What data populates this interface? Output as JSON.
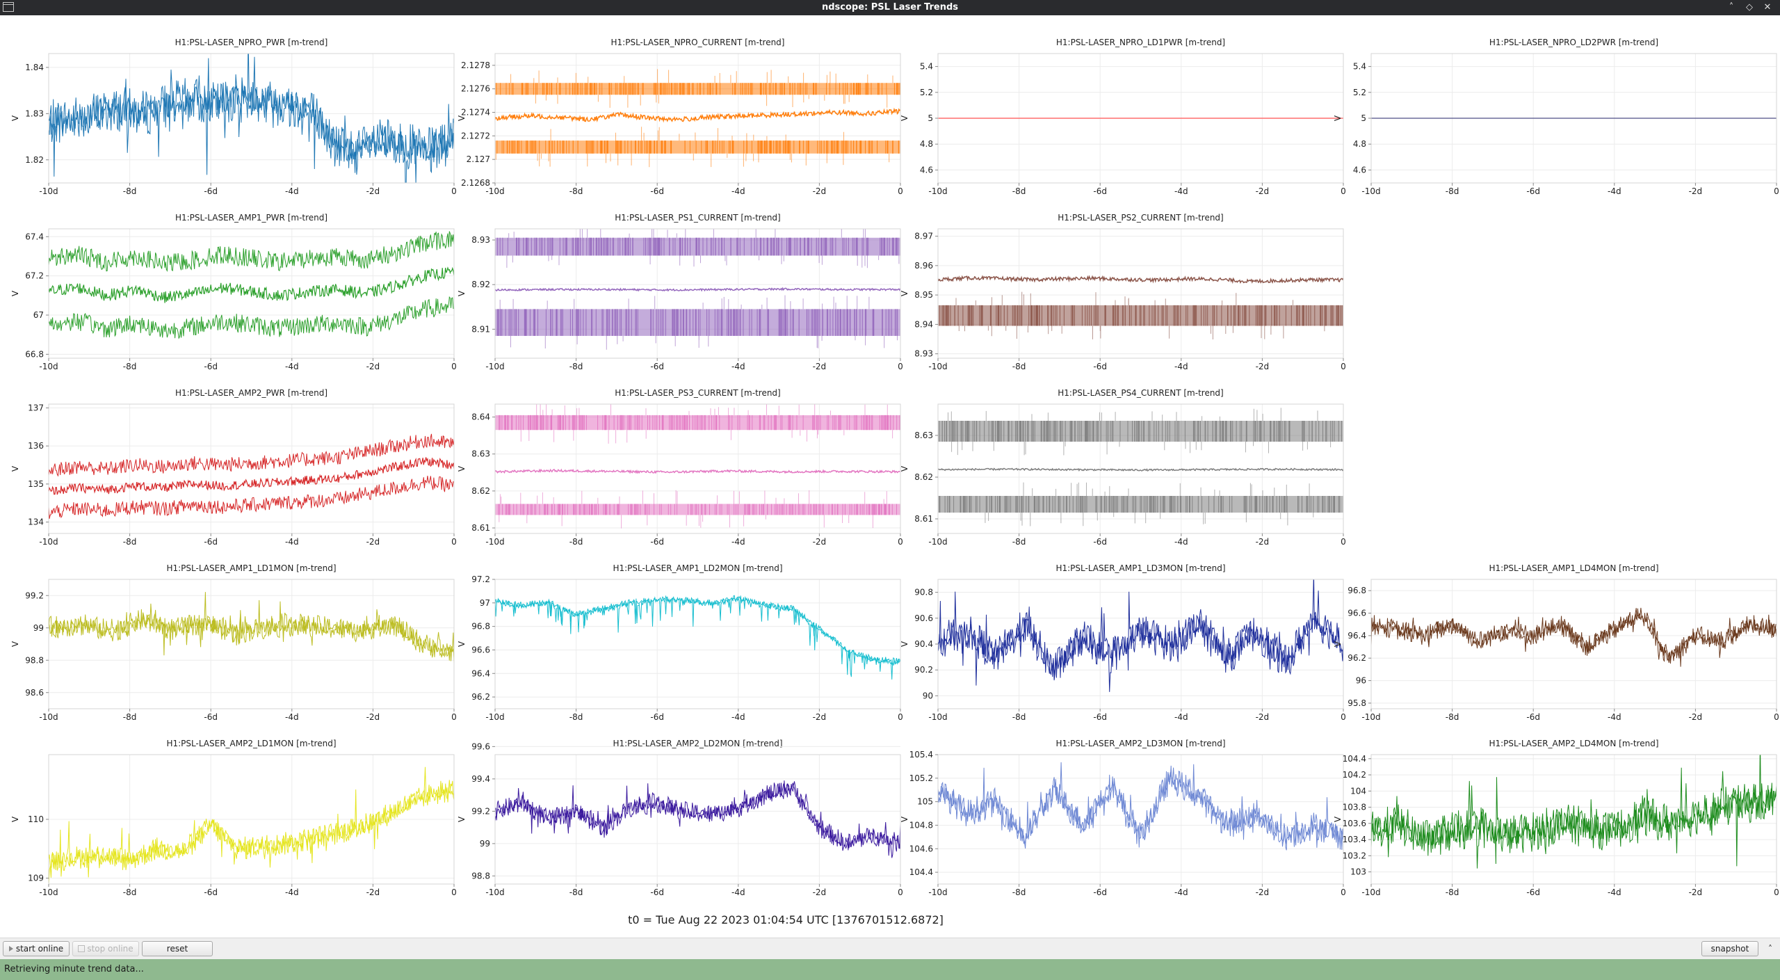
{
  "window": {
    "title": "ndscope: PSL Laser Trends"
  },
  "x_tick_labels": [
    "-10d",
    "-8d",
    "-6d",
    "-4d",
    "-2d",
    "0"
  ],
  "colors": {
    "axis": "#d5d5d5",
    "grid": "#ececec",
    "status_bar": "#8fb98f"
  },
  "plots": [
    {
      "id": "npro_pwr",
      "row": 0,
      "col": 0,
      "title": "H1:PSL-LASER_NPRO_PWR [m-trend]",
      "ylabel": "V",
      "color": "#1f77b4",
      "style": "noise",
      "ylim": [
        1.815,
        1.843
      ],
      "yticks": [
        1.82,
        1.83,
        1.84
      ],
      "ytick_labels": [
        "1.82",
        "1.83",
        "1.84"
      ],
      "series_profile": [
        1.828,
        1.829,
        1.83,
        1.831,
        1.83,
        1.832,
        1.833,
        1.832,
        1.834,
        1.833,
        1.832,
        1.831,
        1.823,
        1.822,
        1.824,
        1.823,
        1.822,
        1.824
      ],
      "amplitude": 0.005
    },
    {
      "id": "npro_current",
      "row": 0,
      "col": 1,
      "title": "H1:PSL-LASER_NPRO_CURRENT [m-trend]",
      "ylabel": "V",
      "color": "#ff7f0e",
      "style": "banded",
      "ylim": [
        2.1268,
        2.1279
      ],
      "yticks": [
        2.1268,
        2.127,
        2.1272,
        2.1274,
        2.1276,
        2.1278
      ],
      "ytick_labels": [
        "2.1268",
        "2.127",
        "2.1272",
        "2.1274",
        "2.1276",
        "2.1278"
      ],
      "bands": [
        [
          2.12755,
          2.12765
        ],
        [
          2.12705,
          2.12716
        ]
      ],
      "series_profile": [
        2.12735,
        2.12737,
        2.12736,
        2.12734,
        2.12738,
        2.12735,
        2.12734,
        2.12736,
        2.12737,
        2.12738,
        2.12739,
        2.1274,
        2.12739,
        2.12741
      ],
      "amplitude": 2e-05
    },
    {
      "id": "npro_ld1pwr",
      "row": 0,
      "col": 2,
      "title": "H1:PSL-LASER_NPRO_LD1PWR [m-trend]",
      "ylabel": "V",
      "color": "#ff6d6d",
      "style": "flat",
      "ylim": [
        4.5,
        5.5
      ],
      "yticks": [
        4.6,
        4.8,
        5,
        5.2,
        5.4
      ],
      "ytick_labels": [
        "4.6",
        "4.8",
        "5",
        "5.2",
        "5.4"
      ],
      "series_profile": [
        5,
        5
      ],
      "amplitude": 0
    },
    {
      "id": "npro_ld2pwr",
      "row": 0,
      "col": 3,
      "title": "H1:PSL-LASER_NPRO_LD2PWR [m-trend]",
      "ylabel": "V",
      "color": "#6b6b9a",
      "style": "flat",
      "ylim": [
        4.5,
        5.5
      ],
      "yticks": [
        4.6,
        4.8,
        5,
        5.2,
        5.4
      ],
      "ytick_labels": [
        "4.6",
        "4.8",
        "5",
        "5.2",
        "5.4"
      ],
      "series_profile": [
        5,
        5
      ],
      "amplitude": 0
    },
    {
      "id": "amp1_pwr",
      "row": 1,
      "col": 0,
      "title": "H1:PSL-LASER_AMP1_PWR [m-trend]",
      "ylabel": "V",
      "color": "#2ca02c",
      "style": "tri",
      "ylim": [
        66.78,
        67.44
      ],
      "yticks": [
        66.8,
        67,
        67.2,
        67.4
      ],
      "ytick_labels": [
        "66.8",
        "67",
        "67.2",
        "67.4"
      ],
      "series_profile": [
        67.12,
        67.14,
        67.1,
        67.13,
        67.09,
        67.11,
        67.14,
        67.12,
        67.1,
        67.12,
        67.13,
        67.11,
        67.15,
        67.2,
        67.22
      ],
      "offset": 0.17,
      "amplitude": 0.03
    },
    {
      "id": "ps1_current",
      "row": 1,
      "col": 1,
      "title": "H1:PSL-LASER_PS1_CURRENT [m-trend]",
      "ylabel": "V",
      "color": "#9467bd",
      "style": "banded",
      "ylim": [
        8.9035,
        8.9325
      ],
      "yticks": [
        8.91,
        8.92,
        8.93
      ],
      "ytick_labels": [
        "8.91",
        "8.92",
        "8.93"
      ],
      "bands": [
        [
          8.9265,
          8.9305
        ],
        [
          8.9085,
          8.9145
        ]
      ],
      "series_profile": [
        8.9188,
        8.9189,
        8.9189,
        8.9188,
        8.9189,
        8.919,
        8.9189,
        8.9189
      ],
      "amplitude": 0.0002
    },
    {
      "id": "ps2_current",
      "row": 1,
      "col": 2,
      "title": "H1:PSL-LASER_PS2_CURRENT [m-trend]",
      "ylabel": "V",
      "color": "#8c564b",
      "style": "banded",
      "ylim": [
        8.9285,
        8.9725
      ],
      "yticks": [
        8.93,
        8.94,
        8.95,
        8.96,
        8.97
      ],
      "ytick_labels": [
        "8.93",
        "8.94",
        "8.95",
        "8.96",
        "8.97"
      ],
      "bands": [
        [
          8.9395,
          8.9465
        ]
      ],
      "series_profile": [
        8.9552,
        8.9558,
        8.9556,
        8.9552,
        8.9555,
        8.9557,
        8.9553,
        8.9551,
        8.9555,
        8.9553,
        8.9546,
        8.9549,
        8.9552,
        8.9551
      ],
      "amplitude": 0.0006
    },
    {
      "id": "amp2_pwr",
      "row": 2,
      "col": 0,
      "title": "H1:PSL-LASER_AMP2_PWR [m-trend]",
      "ylabel": "V",
      "color": "#d62728",
      "style": "tri",
      "ylim": [
        133.7,
        137.1
      ],
      "yticks": [
        134,
        135,
        136,
        137
      ],
      "ytick_labels": [
        "134",
        "135",
        "136",
        "137"
      ],
      "series_profile": [
        134.8,
        134.9,
        134.85,
        134.95,
        134.9,
        135.0,
        134.95,
        135.0,
        135.05,
        135.1,
        135.15,
        135.3,
        135.45,
        135.6,
        135.5
      ],
      "offset": 0.55,
      "amplitude": 0.12
    },
    {
      "id": "ps3_current",
      "row": 2,
      "col": 1,
      "title": "H1:PSL-LASER_PS3_CURRENT [m-trend]",
      "ylabel": "V",
      "color": "#e377c2",
      "style": "banded",
      "ylim": [
        8.6085,
        8.6435
      ],
      "yticks": [
        8.61,
        8.62,
        8.63,
        8.64
      ],
      "ytick_labels": [
        "8.61",
        "8.62",
        "8.63",
        "8.64"
      ],
      "bands": [
        [
          8.6365,
          8.6405
        ],
        [
          8.6135,
          8.6165
        ]
      ],
      "series_profile": [
        8.6252,
        8.6255,
        8.6253,
        8.6251,
        8.6254,
        8.6252,
        8.6253,
        8.6252
      ],
      "amplitude": 0.0003
    },
    {
      "id": "ps4_current",
      "row": 2,
      "col": 2,
      "title": "H1:PSL-LASER_PS4_CURRENT [m-trend]",
      "ylabel": "V",
      "color": "#7f7f7f",
      "style": "banded",
      "ylim": [
        8.6065,
        8.6375
      ],
      "yticks": [
        8.61,
        8.62,
        8.63
      ],
      "ytick_labels": [
        "8.61",
        "8.62",
        "8.63"
      ],
      "bands": [
        [
          8.6285,
          8.6335
        ],
        [
          8.6115,
          8.6155
        ]
      ],
      "series_profile": [
        8.6218,
        8.6219,
        8.6218,
        8.6217,
        8.6218,
        8.6219,
        8.6218
      ],
      "amplitude": 0.0002
    },
    {
      "id": "amp1_ld1mon",
      "row": 3,
      "col": 0,
      "title": "H1:PSL-LASER_AMP1_LD1MON [m-trend]",
      "ylabel": "V",
      "color": "#bcbd22",
      "style": "noise",
      "ylim": [
        98.5,
        99.3
      ],
      "yticks": [
        98.6,
        98.8,
        99,
        99.2
      ],
      "ytick_labels": [
        "98.6",
        "98.8",
        "99",
        "99.2"
      ],
      "series_profile": [
        99.0,
        99.02,
        98.98,
        99.05,
        98.99,
        99.03,
        98.97,
        99.0,
        99.02,
        99.0,
        98.98,
        99.03,
        98.9,
        98.85
      ],
      "amplitude": 0.07
    },
    {
      "id": "amp1_ld2mon",
      "row": 3,
      "col": 1,
      "title": "H1:PSL-LASER_AMP1_LD2MON [m-trend]",
      "ylabel": "V",
      "color": "#17becf",
      "style": "drop",
      "ylim": [
        96.1,
        97.2
      ],
      "yticks": [
        96.2,
        96.4,
        96.6,
        96.8,
        97,
        97.2
      ],
      "ytick_labels": [
        "96.2",
        "96.4",
        "96.6",
        "96.8",
        "97",
        "97.2"
      ],
      "series_profile": [
        97.02,
        96.98,
        97.0,
        96.9,
        96.95,
        97.0,
        97.03,
        97.02,
        97.0,
        97.04,
        96.98,
        96.95,
        96.78,
        96.6,
        96.52,
        96.5
      ],
      "amplitude": 0.03
    },
    {
      "id": "amp1_ld3mon",
      "row": 3,
      "col": 2,
      "title": "H1:PSL-LASER_AMP1_LD3MON [m-trend]",
      "ylabel": "V",
      "color": "#1f2f9c",
      "style": "noise",
      "ylim": [
        89.9,
        90.9
      ],
      "yticks": [
        90,
        90.2,
        90.4,
        90.6,
        90.8
      ],
      "ytick_labels": [
        "90",
        "90.2",
        "90.4",
        "90.6",
        "90.8"
      ],
      "series_profile": [
        90.4,
        90.5,
        90.3,
        90.55,
        90.2,
        90.45,
        90.3,
        90.5,
        90.4,
        90.55,
        90.3,
        90.5,
        90.25,
        90.6,
        90.4
      ],
      "amplitude": 0.14
    },
    {
      "id": "amp1_ld4mon",
      "row": 3,
      "col": 3,
      "title": "H1:PSL-LASER_AMP1_LD4MON [m-trend]",
      "ylabel": "V",
      "color": "#6b3a1e",
      "style": "noise",
      "ylim": [
        95.75,
        96.9
      ],
      "yticks": [
        95.8,
        96,
        96.2,
        96.4,
        96.6,
        96.8
      ],
      "ytick_labels": [
        "95.8",
        "96",
        "96.2",
        "96.4",
        "96.6",
        "96.8"
      ],
      "series_profile": [
        96.5,
        96.45,
        96.4,
        96.5,
        96.35,
        96.45,
        96.4,
        96.5,
        96.3,
        96.45,
        96.6,
        96.2,
        96.4,
        96.35,
        96.5,
        96.45
      ],
      "amplitude": 0.09
    },
    {
      "id": "amp2_ld1mon",
      "row": 4,
      "col": 0,
      "title": "H1:PSL-LASER_AMP2_LD1MON [m-trend]",
      "ylabel": "V",
      "color": "#e5e520",
      "style": "noise",
      "ylim": [
        108.9,
        111.1
      ],
      "yticks": [
        109,
        110
      ],
      "ytick_labels": [
        "109",
        "110"
      ],
      "series_profile": [
        109.3,
        109.35,
        109.4,
        109.3,
        109.5,
        109.45,
        109.9,
        109.5,
        109.55,
        109.6,
        109.7,
        109.8,
        109.95,
        110.2,
        110.4,
        110.5
      ],
      "amplitude": 0.2
    },
    {
      "id": "amp2_ld2mon",
      "row": 4,
      "col": 1,
      "title": "H1:PSL-LASER_AMP2_LD2MON [m-trend]",
      "ylabel": "V",
      "color": "#3b1a9e",
      "style": "noise",
      "ylim": [
        98.75,
        99.55
      ],
      "yticks": [
        98.8,
        99,
        99.2,
        99.4,
        99.6
      ],
      "ytick_labels": [
        "98.8",
        "99",
        "99.2",
        "99.4",
        "99.6"
      ],
      "series_profile": [
        99.2,
        99.25,
        99.15,
        99.2,
        99.1,
        99.22,
        99.25,
        99.2,
        99.18,
        99.22,
        99.3,
        99.35,
        99.1,
        99.0,
        99.05,
        99.0
      ],
      "amplitude": 0.06
    },
    {
      "id": "amp2_ld3mon",
      "row": 4,
      "col": 2,
      "title": "H1:PSL-LASER_AMP2_LD3MON [m-trend]",
      "ylabel": "V",
      "color": "#6e88d4",
      "style": "noise",
      "ylim": [
        104.3,
        105.4
      ],
      "yticks": [
        104.4,
        104.6,
        104.8,
        105,
        105.2,
        105.4
      ],
      "ytick_labels": [
        "104.4",
        "104.6",
        "104.8",
        "105",
        "105.2",
        "105.4"
      ],
      "series_profile": [
        105.1,
        104.9,
        105.0,
        104.7,
        105.1,
        104.8,
        105.15,
        104.7,
        105.2,
        105.05,
        104.8,
        104.9,
        104.7,
        104.8,
        104.7
      ],
      "amplitude": 0.12
    },
    {
      "id": "amp2_ld4mon",
      "row": 4,
      "col": 3,
      "title": "H1:PSL-LASER_AMP2_LD4MON [m-trend]",
      "ylabel": "V",
      "color": "#1d8c1d",
      "style": "noise",
      "ylim": [
        102.85,
        104.45
      ],
      "yticks": [
        103,
        103.2,
        103.4,
        103.6,
        103.8,
        104,
        104.2,
        104.4
      ],
      "ytick_labels": [
        "103",
        "103.2",
        "103.4",
        "103.6",
        "103.8",
        "104",
        "104.2",
        "104.4"
      ],
      "series_profile": [
        103.5,
        103.6,
        103.4,
        103.5,
        103.55,
        103.45,
        103.5,
        103.6,
        103.55,
        103.5,
        103.7,
        103.6,
        103.7,
        103.8,
        103.85,
        103.9
      ],
      "amplitude": 0.25
    }
  ],
  "t0_label": "t0 = Tue Aug 22 2023 01:04:54 UTC [1376701512.6872]",
  "buttons": {
    "start_online": "start online",
    "stop_online": "stop online",
    "reset": "reset",
    "snapshot": "snapshot"
  },
  "status": "Retrieving minute trend data..."
}
